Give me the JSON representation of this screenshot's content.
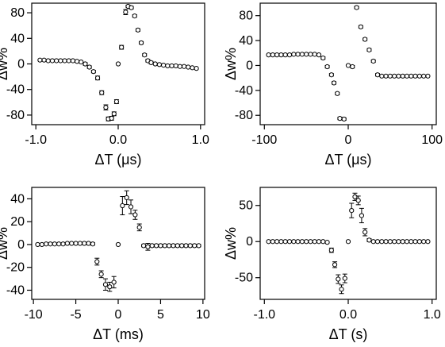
{
  "chart_data": [
    {
      "type": "scatter",
      "xlabel": "ΔT (μs)",
      "ylabel": "Δw%",
      "xlim": [
        -1.05,
        1.05
      ],
      "ylim": [
        -95,
        95
      ],
      "xticks": [
        -1.0,
        0,
        1.0
      ],
      "xtick_labels": [
        "-1.0",
        "0.0",
        "1.0"
      ],
      "yticks": [
        -80,
        -40,
        0,
        40,
        80
      ],
      "ytick_labels": [
        "-80",
        "-40",
        "0",
        "40",
        "80"
      ],
      "grid": false,
      "marker": "open-circle-with-error-bars",
      "points": [
        {
          "x": -0.95,
          "y": 6,
          "err": 1
        },
        {
          "x": -0.9,
          "y": 6,
          "err": 1
        },
        {
          "x": -0.85,
          "y": 5,
          "err": 1
        },
        {
          "x": -0.8,
          "y": 5,
          "err": 1
        },
        {
          "x": -0.75,
          "y": 5,
          "err": 1
        },
        {
          "x": -0.7,
          "y": 5,
          "err": 1
        },
        {
          "x": -0.65,
          "y": 5,
          "err": 1
        },
        {
          "x": -0.6,
          "y": 5,
          "err": 1
        },
        {
          "x": -0.55,
          "y": 5,
          "err": 1
        },
        {
          "x": -0.5,
          "y": 4,
          "err": 1
        },
        {
          "x": -0.45,
          "y": 3,
          "err": 1
        },
        {
          "x": -0.4,
          "y": 0,
          "err": 2
        },
        {
          "x": -0.35,
          "y": -5,
          "err": 2
        },
        {
          "x": -0.3,
          "y": -12,
          "err": 2
        },
        {
          "x": -0.25,
          "y": -22,
          "err": 3
        },
        {
          "x": -0.2,
          "y": -45,
          "err": 3
        },
        {
          "x": -0.15,
          "y": -68,
          "err": 4
        },
        {
          "x": -0.12,
          "y": -86,
          "err": 3
        },
        {
          "x": -0.08,
          "y": -85,
          "err": 3
        },
        {
          "x": -0.05,
          "y": -78,
          "err": 3
        },
        {
          "x": -0.02,
          "y": -59,
          "err": 3
        },
        {
          "x": 0.0,
          "y": 0,
          "err": 0
        },
        {
          "x": 0.04,
          "y": 26,
          "err": 3
        },
        {
          "x": 0.09,
          "y": 81,
          "err": 4
        },
        {
          "x": 0.12,
          "y": 90,
          "err": 2
        },
        {
          "x": 0.16,
          "y": 88,
          "err": 2
        },
        {
          "x": 0.2,
          "y": 75,
          "err": 2
        },
        {
          "x": 0.24,
          "y": 53,
          "err": 2
        },
        {
          "x": 0.28,
          "y": 33,
          "err": 2
        },
        {
          "x": 0.32,
          "y": 14,
          "err": 2
        },
        {
          "x": 0.36,
          "y": 5,
          "err": 2
        },
        {
          "x": 0.4,
          "y": 2,
          "err": 2
        },
        {
          "x": 0.45,
          "y": 0,
          "err": 1
        },
        {
          "x": 0.5,
          "y": -1,
          "err": 1
        },
        {
          "x": 0.55,
          "y": -2,
          "err": 1
        },
        {
          "x": 0.6,
          "y": -3,
          "err": 1
        },
        {
          "x": 0.65,
          "y": -3,
          "err": 1
        },
        {
          "x": 0.7,
          "y": -3,
          "err": 1
        },
        {
          "x": 0.75,
          "y": -4,
          "err": 1
        },
        {
          "x": 0.8,
          "y": -4,
          "err": 1
        },
        {
          "x": 0.85,
          "y": -5,
          "err": 1
        },
        {
          "x": 0.9,
          "y": -6,
          "err": 1
        },
        {
          "x": 0.95,
          "y": -7,
          "err": 1
        }
      ]
    },
    {
      "type": "scatter",
      "xlabel": "ΔT (μs)",
      "ylabel": "Δw%",
      "xlim": [
        -105,
        105
      ],
      "ylim": [
        -95,
        100
      ],
      "xticks": [
        -100,
        0,
        100
      ],
      "xtick_labels": [
        "-100",
        "0",
        "100"
      ],
      "yticks": [
        -80,
        -40,
        0,
        40,
        80
      ],
      "ytick_labels": [
        "-80",
        "-40",
        "0",
        "40",
        "80"
      ],
      "grid": false,
      "marker": "open-circle-with-error-bars",
      "points": [
        {
          "x": -95,
          "y": 17,
          "err": 1
        },
        {
          "x": -90,
          "y": 17,
          "err": 1
        },
        {
          "x": -85,
          "y": 17,
          "err": 1
        },
        {
          "x": -80,
          "y": 17,
          "err": 1
        },
        {
          "x": -75,
          "y": 17,
          "err": 1
        },
        {
          "x": -70,
          "y": 17,
          "err": 1
        },
        {
          "x": -65,
          "y": 18,
          "err": 1
        },
        {
          "x": -60,
          "y": 18,
          "err": 1
        },
        {
          "x": -55,
          "y": 18,
          "err": 1
        },
        {
          "x": -50,
          "y": 18,
          "err": 1
        },
        {
          "x": -45,
          "y": 18,
          "err": 1
        },
        {
          "x": -40,
          "y": 18,
          "err": 1
        },
        {
          "x": -35,
          "y": 17,
          "err": 1
        },
        {
          "x": -30,
          "y": 12,
          "err": 2
        },
        {
          "x": -25,
          "y": -2,
          "err": 2
        },
        {
          "x": -20,
          "y": -15,
          "err": 2
        },
        {
          "x": -17,
          "y": -28,
          "err": 2
        },
        {
          "x": -13,
          "y": -45,
          "err": 2
        },
        {
          "x": -10,
          "y": -85,
          "err": 2
        },
        {
          "x": -5,
          "y": -86,
          "err": 2
        },
        {
          "x": 0,
          "y": 0,
          "err": 0
        },
        {
          "x": 5,
          "y": -2,
          "err": 2
        },
        {
          "x": 10,
          "y": 93,
          "err": 2
        },
        {
          "x": 15,
          "y": 62,
          "err": 2
        },
        {
          "x": 20,
          "y": 42,
          "err": 2
        },
        {
          "x": 25,
          "y": 25,
          "err": 2
        },
        {
          "x": 30,
          "y": 7,
          "err": 2
        },
        {
          "x": 35,
          "y": -15,
          "err": 2
        },
        {
          "x": 40,
          "y": -17,
          "err": 1
        },
        {
          "x": 45,
          "y": -17,
          "err": 1
        },
        {
          "x": 50,
          "y": -17,
          "err": 1
        },
        {
          "x": 55,
          "y": -17,
          "err": 1
        },
        {
          "x": 60,
          "y": -17,
          "err": 1
        },
        {
          "x": 65,
          "y": -17,
          "err": 1
        },
        {
          "x": 70,
          "y": -17,
          "err": 1
        },
        {
          "x": 75,
          "y": -17,
          "err": 1
        },
        {
          "x": 80,
          "y": -17,
          "err": 1
        },
        {
          "x": 85,
          "y": -17,
          "err": 1
        },
        {
          "x": 90,
          "y": -17,
          "err": 1
        },
        {
          "x": 95,
          "y": -17,
          "err": 1
        }
      ]
    },
    {
      "type": "scatter",
      "xlabel": "ΔT (ms)",
      "ylabel": "Δw%",
      "xlim": [
        -10.2,
        10.2
      ],
      "ylim": [
        -48,
        50
      ],
      "xticks": [
        -10,
        -5,
        0,
        5,
        10
      ],
      "xtick_labels": [
        "-10",
        "-5",
        "0",
        "5",
        "10"
      ],
      "yticks": [
        -40,
        -20,
        0,
        20,
        40
      ],
      "ytick_labels": [
        "-40",
        "-20",
        "0",
        "20",
        "40"
      ],
      "grid": false,
      "marker": "open-circle-with-error-bars",
      "points": [
        {
          "x": -9.5,
          "y": 0,
          "err": 0.5
        },
        {
          "x": -9,
          "y": 0,
          "err": 0.5
        },
        {
          "x": -8.5,
          "y": 0.5,
          "err": 0.5
        },
        {
          "x": -8,
          "y": 0.5,
          "err": 0.5
        },
        {
          "x": -7.5,
          "y": 0.5,
          "err": 0.5
        },
        {
          "x": -7,
          "y": 0.5,
          "err": 0.5
        },
        {
          "x": -6.5,
          "y": 0.5,
          "err": 0.5
        },
        {
          "x": -6,
          "y": 1,
          "err": 0.5
        },
        {
          "x": -5.5,
          "y": 1,
          "err": 0.5
        },
        {
          "x": -5,
          "y": 1,
          "err": 0.5
        },
        {
          "x": -4.5,
          "y": 1,
          "err": 0.5
        },
        {
          "x": -4,
          "y": 1,
          "err": 1
        },
        {
          "x": -3.5,
          "y": 1,
          "err": 1
        },
        {
          "x": -3,
          "y": 0.5,
          "err": 1
        },
        {
          "x": -2.5,
          "y": -15,
          "err": 3
        },
        {
          "x": -2,
          "y": -26,
          "err": 3
        },
        {
          "x": -1.5,
          "y": -35,
          "err": 5
        },
        {
          "x": -1,
          "y": -37,
          "err": 4
        },
        {
          "x": -0.5,
          "y": -33,
          "err": 5
        },
        {
          "x": 0,
          "y": 0,
          "err": 0
        },
        {
          "x": 0.5,
          "y": 34,
          "err": 8
        },
        {
          "x": 1,
          "y": 41,
          "err": 6
        },
        {
          "x": 1.5,
          "y": 33,
          "err": 6
        },
        {
          "x": 2,
          "y": 26,
          "err": 4
        },
        {
          "x": 2.5,
          "y": 15,
          "err": 3
        },
        {
          "x": 3,
          "y": -1,
          "err": 1
        },
        {
          "x": 3.5,
          "y": -2,
          "err": 3
        },
        {
          "x": 4,
          "y": -1,
          "err": 1
        },
        {
          "x": 4.5,
          "y": -1,
          "err": 1
        },
        {
          "x": 5,
          "y": -1,
          "err": 1
        },
        {
          "x": 5.5,
          "y": -1,
          "err": 1
        },
        {
          "x": 6,
          "y": -1,
          "err": 1
        },
        {
          "x": 6.5,
          "y": -1,
          "err": 1
        },
        {
          "x": 7,
          "y": -1,
          "err": 1
        },
        {
          "x": 7.5,
          "y": -1,
          "err": 1
        },
        {
          "x": 8,
          "y": -1,
          "err": 1
        },
        {
          "x": 8.5,
          "y": -1,
          "err": 1
        },
        {
          "x": 9,
          "y": -1,
          "err": 1
        },
        {
          "x": 9.5,
          "y": -1,
          "err": 1
        }
      ]
    },
    {
      "type": "scatter",
      "xlabel": "ΔT (s)",
      "ylabel": "Δw%",
      "xlim": [
        -1.05,
        1.05
      ],
      "ylim": [
        -80,
        75
      ],
      "xticks": [
        -1.0,
        0,
        1.0
      ],
      "xtick_labels": [
        "-1.0",
        "0.0",
        "1.0"
      ],
      "yticks": [
        -50,
        0,
        50
      ],
      "ytick_labels": [
        "-50",
        "0",
        "50"
      ],
      "grid": false,
      "marker": "open-circle-with-error-bars",
      "points": [
        {
          "x": -0.95,
          "y": 0,
          "err": 0.5
        },
        {
          "x": -0.9,
          "y": 0,
          "err": 0.5
        },
        {
          "x": -0.85,
          "y": 0,
          "err": 0.5
        },
        {
          "x": -0.8,
          "y": 0,
          "err": 0.5
        },
        {
          "x": -0.75,
          "y": 0,
          "err": 0.5
        },
        {
          "x": -0.7,
          "y": 0,
          "err": 0.5
        },
        {
          "x": -0.65,
          "y": 0,
          "err": 0.5
        },
        {
          "x": -0.6,
          "y": 0,
          "err": 0.5
        },
        {
          "x": -0.55,
          "y": 0,
          "err": 0.5
        },
        {
          "x": -0.5,
          "y": 0,
          "err": 0.5
        },
        {
          "x": -0.45,
          "y": 0,
          "err": 0.5
        },
        {
          "x": -0.4,
          "y": 0,
          "err": 0.5
        },
        {
          "x": -0.35,
          "y": 0,
          "err": 0.5
        },
        {
          "x": -0.3,
          "y": 0,
          "err": 0.5
        },
        {
          "x": -0.25,
          "y": -1,
          "err": 1
        },
        {
          "x": -0.2,
          "y": -12,
          "err": 3
        },
        {
          "x": -0.16,
          "y": -32,
          "err": 4
        },
        {
          "x": -0.12,
          "y": -52,
          "err": 6
        },
        {
          "x": -0.08,
          "y": -66,
          "err": 6
        },
        {
          "x": -0.04,
          "y": -51,
          "err": 6
        },
        {
          "x": 0.0,
          "y": 0,
          "err": 0
        },
        {
          "x": 0.04,
          "y": 43,
          "err": 10
        },
        {
          "x": 0.08,
          "y": 62,
          "err": 5
        },
        {
          "x": 0.12,
          "y": 57,
          "err": 6
        },
        {
          "x": 0.16,
          "y": 36,
          "err": 10
        },
        {
          "x": 0.2,
          "y": 13,
          "err": 5
        },
        {
          "x": 0.25,
          "y": 2,
          "err": 2
        },
        {
          "x": 0.3,
          "y": 0,
          "err": 1
        },
        {
          "x": 0.35,
          "y": 0,
          "err": 0.5
        },
        {
          "x": 0.4,
          "y": 0,
          "err": 0.5
        },
        {
          "x": 0.45,
          "y": 0,
          "err": 0.5
        },
        {
          "x": 0.5,
          "y": 0,
          "err": 0.5
        },
        {
          "x": 0.55,
          "y": 0,
          "err": 0.5
        },
        {
          "x": 0.6,
          "y": 0,
          "err": 0.5
        },
        {
          "x": 0.65,
          "y": 0,
          "err": 0.5
        },
        {
          "x": 0.7,
          "y": 0,
          "err": 0.5
        },
        {
          "x": 0.75,
          "y": 0,
          "err": 0.5
        },
        {
          "x": 0.8,
          "y": 0,
          "err": 0.5
        },
        {
          "x": 0.85,
          "y": 0,
          "err": 0.5
        },
        {
          "x": 0.9,
          "y": 0,
          "err": 0.5
        },
        {
          "x": 0.95,
          "y": 0,
          "err": 0.5
        }
      ]
    }
  ]
}
